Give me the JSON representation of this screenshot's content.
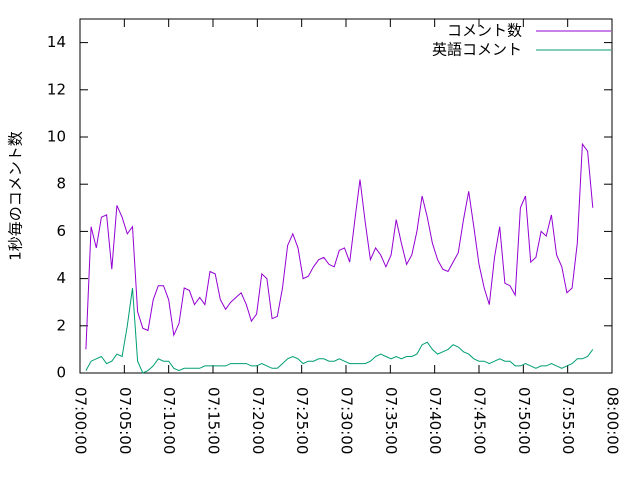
{
  "chart_data": {
    "type": "line",
    "ylabel": "1秒毎のコメント数",
    "x": [
      "07:00:40",
      "07:01:15",
      "07:01:50",
      "07:02:25",
      "07:03:00",
      "07:03:35",
      "07:04:10",
      "07:04:45",
      "07:05:20",
      "07:05:55",
      "07:06:30",
      "07:07:05",
      "07:07:40",
      "07:08:15",
      "07:08:50",
      "07:09:25",
      "07:10:00",
      "07:10:35",
      "07:11:10",
      "07:11:45",
      "07:12:20",
      "07:12:55",
      "07:13:30",
      "07:14:05",
      "07:14:40",
      "07:15:15",
      "07:15:50",
      "07:16:25",
      "07:17:00",
      "07:17:35",
      "07:18:10",
      "07:18:45",
      "07:19:20",
      "07:19:55",
      "07:20:30",
      "07:21:05",
      "07:21:40",
      "07:22:15",
      "07:22:50",
      "07:23:25",
      "07:24:00",
      "07:24:35",
      "07:25:10",
      "07:25:45",
      "07:26:20",
      "07:26:55",
      "07:27:30",
      "07:28:05",
      "07:28:40",
      "07:29:15",
      "07:29:50",
      "07:30:25",
      "07:31:00",
      "07:31:35",
      "07:32:10",
      "07:32:45",
      "07:33:20",
      "07:33:55",
      "07:34:30",
      "07:35:05",
      "07:35:40",
      "07:36:15",
      "07:36:50",
      "07:37:25",
      "07:38:00",
      "07:38:35",
      "07:39:10",
      "07:39:45",
      "07:40:20",
      "07:40:55",
      "07:41:30",
      "07:42:05",
      "07:42:40",
      "07:43:15",
      "07:43:50",
      "07:44:25",
      "07:45:00",
      "07:45:35",
      "07:46:10",
      "07:46:45",
      "07:47:20",
      "07:47:55",
      "07:48:30",
      "07:49:05",
      "07:49:40",
      "07:50:15",
      "07:50:50",
      "07:51:25",
      "07:52:00",
      "07:52:35",
      "07:53:10",
      "07:53:45",
      "07:54:20",
      "07:54:55",
      "07:55:30",
      "07:56:05",
      "07:56:40",
      "07:57:15",
      "07:57:50"
    ],
    "series": [
      {
        "name": "コメント数",
        "color": "#9400d3",
        "values": [
          1.0,
          6.2,
          5.3,
          6.6,
          6.7,
          4.4,
          7.1,
          6.6,
          5.9,
          6.2,
          2.6,
          1.9,
          1.8,
          3.1,
          3.7,
          3.7,
          3.1,
          1.6,
          2.1,
          3.6,
          3.5,
          2.9,
          3.2,
          2.9,
          4.3,
          4.2,
          3.1,
          2.7,
          3.0,
          3.2,
          3.4,
          2.9,
          2.2,
          2.5,
          4.2,
          4.0,
          2.3,
          2.4,
          3.6,
          5.4,
          5.9,
          5.3,
          4.0,
          4.1,
          4.5,
          4.8,
          4.9,
          4.6,
          4.5,
          5.2,
          5.3,
          4.7,
          6.5,
          8.2,
          6.4,
          4.8,
          5.3,
          5.0,
          4.5,
          5.0,
          6.5,
          5.5,
          4.6,
          5.0,
          6.0,
          7.5,
          6.6,
          5.5,
          4.8,
          4.4,
          4.3,
          4.7,
          5.1,
          6.5,
          7.7,
          6.2,
          4.6,
          3.6,
          2.9,
          4.9,
          6.2,
          3.8,
          3.7,
          3.3,
          7.0,
          7.5,
          4.7,
          4.9,
          6.0,
          5.8,
          6.7,
          5.0,
          4.5,
          3.4,
          3.6,
          5.5,
          9.7,
          9.4,
          7.0
        ]
      },
      {
        "name": "英語コメント",
        "color": "#009e73",
        "values": [
          0.1,
          0.5,
          0.6,
          0.7,
          0.4,
          0.5,
          0.8,
          0.7,
          2.0,
          3.6,
          0.5,
          0.0,
          0.1,
          0.3,
          0.6,
          0.5,
          0.5,
          0.2,
          0.1,
          0.2,
          0.2,
          0.2,
          0.2,
          0.3,
          0.3,
          0.3,
          0.3,
          0.3,
          0.4,
          0.4,
          0.4,
          0.4,
          0.3,
          0.3,
          0.4,
          0.3,
          0.2,
          0.2,
          0.4,
          0.6,
          0.7,
          0.6,
          0.4,
          0.5,
          0.5,
          0.6,
          0.6,
          0.5,
          0.5,
          0.6,
          0.5,
          0.4,
          0.4,
          0.4,
          0.4,
          0.5,
          0.7,
          0.8,
          0.7,
          0.6,
          0.7,
          0.6,
          0.7,
          0.7,
          0.8,
          1.2,
          1.3,
          1.0,
          0.8,
          0.9,
          1.0,
          1.2,
          1.1,
          0.9,
          0.8,
          0.6,
          0.5,
          0.5,
          0.4,
          0.5,
          0.6,
          0.5,
          0.5,
          0.3,
          0.3,
          0.4,
          0.3,
          0.2,
          0.3,
          0.3,
          0.4,
          0.3,
          0.2,
          0.3,
          0.4,
          0.6,
          0.6,
          0.7,
          1.0
        ]
      }
    ],
    "xlim": [
      "07:00:00",
      "08:00:00"
    ],
    "xticks": [
      "07:00:00",
      "07:05:00",
      "07:10:00",
      "07:15:00",
      "07:20:00",
      "07:25:00",
      "07:30:00",
      "07:35:00",
      "07:40:00",
      "07:45:00",
      "07:50:00",
      "07:55:00",
      "08:00:00"
    ],
    "ylim": [
      0,
      15
    ],
    "yticks": [
      0,
      2,
      4,
      6,
      8,
      10,
      12,
      14
    ],
    "grid": false,
    "legend": "top-right"
  }
}
